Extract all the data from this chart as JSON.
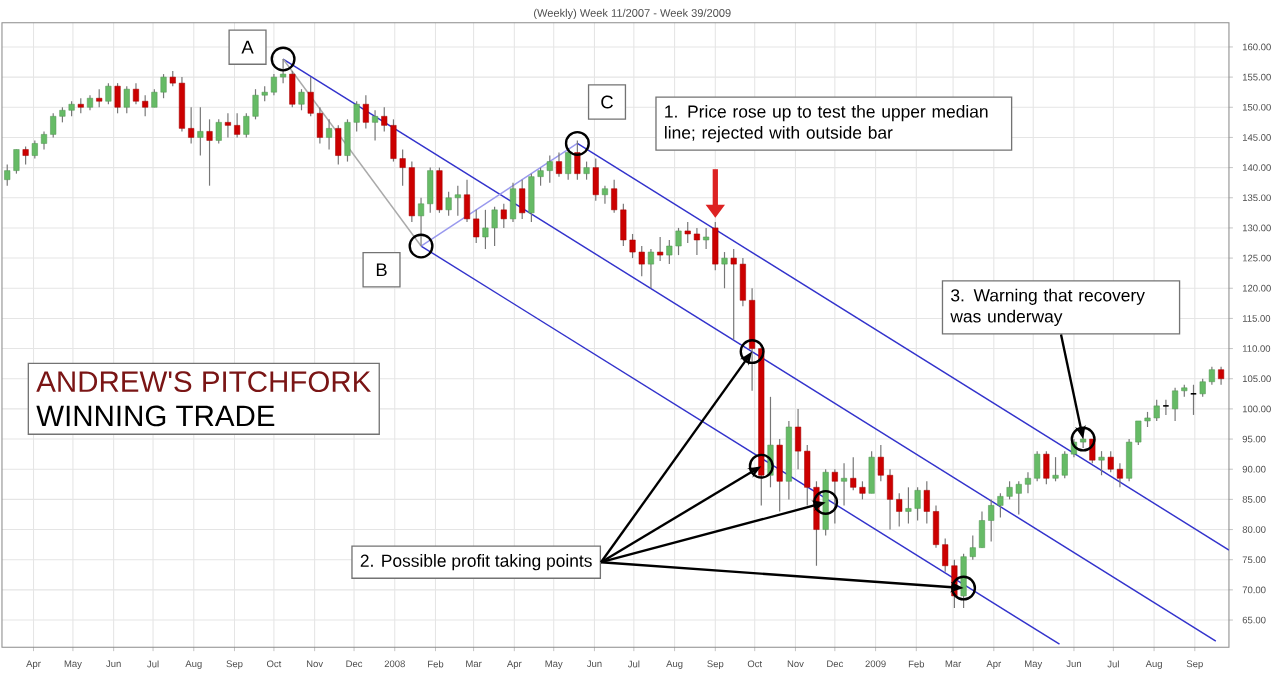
{
  "chart_data": {
    "type": "candlestick",
    "title": "(Weekly) Week 11/2007 - Week 39/2009",
    "x": [
      "2007-03-12",
      "2007-03-19",
      "2007-03-26",
      "2007-04-02",
      "2007-04-09",
      "2007-04-16",
      "2007-04-23",
      "2007-04-30",
      "2007-05-07",
      "2007-05-14",
      "2007-05-21",
      "2007-05-28",
      "2007-06-04",
      "2007-06-11",
      "2007-06-18",
      "2007-06-25",
      "2007-07-02",
      "2007-07-09",
      "2007-07-16",
      "2007-07-23",
      "2007-07-30",
      "2007-08-06",
      "2007-08-13",
      "2007-08-20",
      "2007-08-27",
      "2007-09-03",
      "2007-09-10",
      "2007-09-17",
      "2007-09-24",
      "2007-10-01",
      "2007-10-08",
      "2007-10-15",
      "2007-10-22",
      "2007-10-29",
      "2007-11-05",
      "2007-11-12",
      "2007-11-19",
      "2007-11-26",
      "2007-12-03",
      "2007-12-10",
      "2007-12-17",
      "2007-12-24",
      "2007-12-31",
      "2008-01-07",
      "2008-01-14",
      "2008-01-21",
      "2008-01-28",
      "2008-02-04",
      "2008-02-11",
      "2008-02-18",
      "2008-02-25",
      "2008-03-03",
      "2008-03-10",
      "2008-03-17",
      "2008-03-24",
      "2008-03-31",
      "2008-04-07",
      "2008-04-14",
      "2008-04-21",
      "2008-04-28",
      "2008-05-05",
      "2008-05-12",
      "2008-05-19",
      "2008-05-26",
      "2008-06-02",
      "2008-06-09",
      "2008-06-16",
      "2008-06-23",
      "2008-06-30",
      "2008-07-07",
      "2008-07-14",
      "2008-07-21",
      "2008-07-28",
      "2008-08-04",
      "2008-08-11",
      "2008-08-18",
      "2008-08-25",
      "2008-09-01",
      "2008-09-08",
      "2008-09-15",
      "2008-09-22",
      "2008-09-29",
      "2008-10-06",
      "2008-10-13",
      "2008-10-20",
      "2008-10-27",
      "2008-11-03",
      "2008-11-10",
      "2008-11-17",
      "2008-11-24",
      "2008-12-01",
      "2008-12-08",
      "2008-12-15",
      "2008-12-22",
      "2008-12-29",
      "2009-01-05",
      "2009-01-12",
      "2009-01-19",
      "2009-01-26",
      "2009-02-02",
      "2009-02-09",
      "2009-02-16",
      "2009-02-23",
      "2009-03-02",
      "2009-03-09",
      "2009-03-16",
      "2009-03-23",
      "2009-03-30",
      "2009-04-06",
      "2009-04-13",
      "2009-04-20",
      "2009-04-27",
      "2009-05-04",
      "2009-05-11",
      "2009-05-18",
      "2009-05-25",
      "2009-06-01",
      "2009-06-08",
      "2009-06-15",
      "2009-06-22",
      "2009-06-29",
      "2009-07-06",
      "2009-07-13",
      "2009-07-20",
      "2009-07-27",
      "2009-08-03",
      "2009-08-10",
      "2009-08-17",
      "2009-08-24",
      "2009-08-31",
      "2009-09-07",
      "2009-09-14",
      "2009-09-21"
    ],
    "ohlc": [
      [
        138,
        140.5,
        137,
        139.5
      ],
      [
        139.5,
        143,
        139,
        143
      ],
      [
        143,
        143.5,
        140.5,
        142
      ],
      [
        142,
        144.5,
        141.5,
        144
      ],
      [
        144,
        146,
        143,
        145.5
      ],
      [
        145.5,
        149,
        145,
        148.5
      ],
      [
        148.5,
        150,
        147.5,
        149.5
      ],
      [
        149.5,
        151,
        148.5,
        150.5
      ],
      [
        150.5,
        151.5,
        149,
        150
      ],
      [
        150,
        152,
        149.5,
        151.5
      ],
      [
        151.5,
        153,
        150,
        151
      ],
      [
        151,
        154,
        150.5,
        153.5
      ],
      [
        153.5,
        154,
        149,
        150
      ],
      [
        150,
        153.5,
        149,
        153
      ],
      [
        153,
        154,
        150.5,
        151
      ],
      [
        151,
        152,
        148.5,
        150
      ],
      [
        150,
        153,
        150,
        152.5
      ],
      [
        152.5,
        155.5,
        151.5,
        155
      ],
      [
        155,
        156,
        153.5,
        154
      ],
      [
        154,
        155,
        146,
        146.5
      ],
      [
        146.5,
        150,
        144,
        145
      ],
      [
        145,
        150,
        142,
        146
      ],
      [
        146,
        148,
        137,
        144.5
      ],
      [
        144.5,
        148,
        144,
        147.5
      ],
      [
        147.5,
        149,
        145,
        147
      ],
      [
        147,
        149,
        145,
        145.5
      ],
      [
        145.5,
        149,
        145,
        148.5
      ],
      [
        148.5,
        153,
        148,
        152
      ],
      [
        152,
        153.5,
        151,
        152.5
      ],
      [
        152.5,
        155.5,
        152,
        155
      ],
      [
        155,
        158,
        154,
        155.5
      ],
      [
        155.5,
        156,
        150,
        150.5
      ],
      [
        150.5,
        153,
        149.5,
        152.5
      ],
      [
        152.5,
        155,
        148.5,
        149
      ],
      [
        149,
        150,
        144,
        145
      ],
      [
        145,
        148,
        143,
        146.5
      ],
      [
        146.5,
        147,
        140.5,
        142
      ],
      [
        142,
        148,
        141,
        147.5
      ],
      [
        147.5,
        151,
        146,
        150.5
      ],
      [
        150.5,
        152,
        146.5,
        147.5
      ],
      [
        147.5,
        149.5,
        144.5,
        148.5
      ],
      [
        148.5,
        150,
        146,
        147
      ],
      [
        147,
        148,
        141,
        141.5
      ],
      [
        141.5,
        143,
        137,
        140
      ],
      [
        140,
        141,
        131,
        132
      ],
      [
        132,
        135,
        127,
        134
      ],
      [
        134,
        140,
        132.5,
        139.5
      ],
      [
        139.5,
        140,
        132.5,
        133
      ],
      [
        133,
        136,
        132,
        135
      ],
      [
        135,
        137,
        132,
        135.5
      ],
      [
        135.5,
        138,
        131,
        131.5
      ],
      [
        131.5,
        133,
        127.5,
        128.5
      ],
      [
        128.5,
        133,
        126.5,
        130
      ],
      [
        130,
        133.5,
        127,
        133
      ],
      [
        133,
        134,
        130,
        131.5
      ],
      [
        131.5,
        137.5,
        131,
        136.5
      ],
      [
        136.5,
        138,
        131.5,
        132.5
      ],
      [
        132.5,
        139,
        131,
        138.5
      ],
      [
        138.5,
        140,
        137,
        139.5
      ],
      [
        139.5,
        142,
        137.5,
        141
      ],
      [
        141,
        142.5,
        138.5,
        139
      ],
      [
        139,
        143,
        138,
        142.5
      ],
      [
        142.5,
        144.5,
        138,
        139
      ],
      [
        139,
        141,
        138,
        140
      ],
      [
        140,
        141.5,
        134.5,
        135.5
      ],
      [
        135.5,
        137,
        134,
        136.5
      ],
      [
        136.5,
        138,
        132.5,
        133
      ],
      [
        133,
        134,
        127,
        128
      ],
      [
        128,
        129,
        125,
        126
      ],
      [
        126,
        127,
        122,
        124
      ],
      [
        124,
        126.5,
        120,
        126
      ],
      [
        126,
        128.5,
        124.5,
        125.5
      ],
      [
        125.5,
        128,
        124,
        127
      ],
      [
        127,
        130,
        125.5,
        129.5
      ],
      [
        129.5,
        131,
        127.5,
        129
      ],
      [
        129,
        130,
        125.5,
        128
      ],
      [
        128,
        130,
        126.5,
        128.5
      ],
      [
        130,
        131,
        123,
        124
      ],
      [
        124,
        126,
        120,
        125
      ],
      [
        125,
        126.5,
        111.5,
        124
      ],
      [
        124,
        125,
        117,
        118
      ],
      [
        118,
        120,
        103,
        110
      ],
      [
        110,
        110.5,
        84,
        89
      ],
      [
        89,
        102,
        87,
        94
      ],
      [
        94,
        95,
        83,
        88
      ],
      [
        88,
        98,
        85,
        97
      ],
      [
        97,
        100,
        90,
        93
      ],
      [
        93,
        94,
        84,
        87
      ],
      [
        87,
        88,
        74,
        80
      ],
      [
        80,
        90,
        79,
        89.5
      ],
      [
        89.5,
        90,
        81,
        88
      ],
      [
        88,
        91,
        84,
        88.5
      ],
      [
        88.5,
        92,
        86.5,
        87
      ],
      [
        87,
        88,
        85,
        86
      ],
      [
        86,
        93,
        86,
        92
      ],
      [
        92,
        94,
        88,
        89
      ],
      [
        89,
        90,
        80,
        85
      ],
      [
        85,
        86,
        80.5,
        83
      ],
      [
        83,
        87,
        81,
        83.5
      ],
      [
        83.5,
        87,
        81.5,
        86.5
      ],
      [
        86.5,
        88,
        81,
        83
      ],
      [
        83,
        84,
        77,
        77.5
      ],
      [
        77.5,
        78.5,
        73,
        74
      ],
      [
        74,
        75,
        67,
        69
      ],
      [
        69,
        76,
        67,
        75.5
      ],
      [
        75.5,
        79,
        75,
        77
      ],
      [
        77,
        83,
        77,
        81.5
      ],
      [
        81.5,
        85,
        78,
        84
      ],
      [
        84,
        86,
        82,
        85.5
      ],
      [
        85.5,
        88,
        85,
        87
      ],
      [
        86,
        88,
        82.5,
        87.5
      ],
      [
        87.5,
        89.5,
        86,
        88.5
      ],
      [
        88.5,
        93,
        88,
        92.5
      ],
      [
        92.5,
        93,
        87.5,
        88.5
      ],
      [
        88.5,
        92,
        88,
        89
      ],
      [
        89,
        93,
        88.5,
        92.5
      ],
      [
        92.5,
        95,
        92,
        94.5
      ],
      [
        94.5,
        96,
        93.5,
        95
      ],
      [
        95,
        95,
        91,
        91.5
      ],
      [
        91.5,
        93,
        89,
        92
      ],
      [
        92,
        93,
        89.5,
        90
      ],
      [
        90,
        91,
        87,
        88.5
      ],
      [
        88.5,
        95,
        88,
        94.5
      ],
      [
        94.5,
        98,
        94,
        98
      ],
      [
        98,
        99.5,
        97,
        98.5
      ],
      [
        98.5,
        101.5,
        98,
        100.5
      ],
      [
        100.5,
        101.5,
        99,
        100.5
      ],
      [
        100,
        103.5,
        98,
        103
      ],
      [
        103,
        104,
        102,
        103.5
      ],
      [
        102.5,
        104,
        99,
        102.5
      ],
      [
        102.5,
        105,
        102,
        104.5
      ],
      [
        104.5,
        107,
        104,
        106.5
      ],
      [
        106.5,
        107,
        104,
        105
      ]
    ],
    "series": [
      {
        "type": "line",
        "color": "#3333cc",
        "x": [
          "2007-10-08",
          "2009-09-17"
        ],
        "values": [
          158,
          61.5
        ]
      },
      {
        "type": "line",
        "color": "#3333cc",
        "x": [
          "2008-05-19",
          "2009-09-27"
        ],
        "values": [
          144,
          76.6
        ]
      },
      {
        "type": "line",
        "color": "#3333cc",
        "x": [
          "2008-01-21",
          "2009-05-21"
        ],
        "values": [
          127,
          61
        ]
      },
      {
        "type": "line",
        "color": "#aaaaaa",
        "x": [
          "2007-10-08",
          "2008-01-21"
        ],
        "values": [
          158,
          127
        ]
      },
      {
        "type": "line",
        "color": "#9999ee",
        "x": [
          "2008-01-21",
          "2008-05-19"
        ],
        "values": [
          127,
          144
        ]
      },
      {
        "type": "scatter",
        "color": "#000000",
        "marker": "circle",
        "x": [
          "2007-10-08",
          "2008-01-21",
          "2008-05-19",
          "2008-09-29",
          "2008-10-06",
          "2008-11-24",
          "2009-03-09",
          "2009-06-08"
        ],
        "values": [
          158,
          127,
          144,
          109.5,
          90.5,
          84.5,
          70.3,
          95
        ]
      }
    ],
    "xlim": [
      "2007-03-08",
      "2009-09-27"
    ],
    "ylim": [
      60.5,
      164
    ],
    "xticks": [
      {
        "value": "2007-04-01",
        "label": "Apr"
      },
      {
        "value": "2007-05-01",
        "label": "May"
      },
      {
        "value": "2007-06-01",
        "label": "Jun"
      },
      {
        "value": "2007-07-01",
        "label": "Jul"
      },
      {
        "value": "2007-08-01",
        "label": "Aug"
      },
      {
        "value": "2007-09-01",
        "label": "Sep"
      },
      {
        "value": "2007-10-01",
        "label": "Oct"
      },
      {
        "value": "2007-11-01",
        "label": "Nov"
      },
      {
        "value": "2007-12-01",
        "label": "Dec"
      },
      {
        "value": "2008-01-01",
        "label": "2008"
      },
      {
        "value": "2008-02-01",
        "label": "Feb"
      },
      {
        "value": "2008-03-01",
        "label": "Mar"
      },
      {
        "value": "2008-04-01",
        "label": "Apr"
      },
      {
        "value": "2008-05-01",
        "label": "May"
      },
      {
        "value": "2008-06-01",
        "label": "Jun"
      },
      {
        "value": "2008-07-01",
        "label": "Jul"
      },
      {
        "value": "2008-08-01",
        "label": "Aug"
      },
      {
        "value": "2008-09-01",
        "label": "Sep"
      },
      {
        "value": "2008-10-01",
        "label": "Oct"
      },
      {
        "value": "2008-11-01",
        "label": "Nov"
      },
      {
        "value": "2008-12-01",
        "label": "Dec"
      },
      {
        "value": "2009-01-01",
        "label": "2009"
      },
      {
        "value": "2009-02-01",
        "label": "Feb"
      },
      {
        "value": "2009-03-01",
        "label": "Mar"
      },
      {
        "value": "2009-04-01",
        "label": "Apr"
      },
      {
        "value": "2009-05-01",
        "label": "May"
      },
      {
        "value": "2009-06-01",
        "label": "Jun"
      },
      {
        "value": "2009-07-01",
        "label": "Jul"
      },
      {
        "value": "2009-08-01",
        "label": "Aug"
      },
      {
        "value": "2009-09-01",
        "label": "Sep"
      }
    ],
    "yticks": [
      {
        "value": 65,
        "label": "65.00"
      },
      {
        "value": 70,
        "label": "70.00"
      },
      {
        "value": 75,
        "label": "75.00"
      },
      {
        "value": 80,
        "label": "80.00"
      },
      {
        "value": 85,
        "label": "85.00"
      },
      {
        "value": 90,
        "label": "90.00"
      },
      {
        "value": 95,
        "label": "95.00"
      },
      {
        "value": 100,
        "label": "100.00"
      },
      {
        "value": 105,
        "label": "105.00"
      },
      {
        "value": 110,
        "label": "110.00"
      },
      {
        "value": 115,
        "label": "115.00"
      },
      {
        "value": 120,
        "label": "120.00"
      },
      {
        "value": 125,
        "label": "125.00"
      },
      {
        "value": 130,
        "label": "130.00"
      },
      {
        "value": 135,
        "label": "135.00"
      },
      {
        "value": 140,
        "label": "140.00"
      },
      {
        "value": 145,
        "label": "145.00"
      },
      {
        "value": 150,
        "label": "150.00"
      },
      {
        "value": 155,
        "label": "155.00"
      },
      {
        "value": 160,
        "label": "160.00"
      }
    ],
    "grid": true,
    "annotations": [
      {
        "text": "A",
        "x": "2007-10-08",
        "y": 158
      },
      {
        "text": "B",
        "x": "2008-01-21",
        "y": 127
      },
      {
        "text": "C",
        "x": "2008-05-19",
        "y": 144
      },
      "1. Price rose up to test the upper median line; rejected with outside bar",
      {
        "text": "2. Possible profit taking points",
        "x": "2008-09-29",
        "y": 109.5
      },
      {
        "text": "3. Warning that recovery was underway",
        "x": "2009-06-08",
        "y": 95
      },
      "ANDREW'S PITCHFORK",
      "WINNING TRADE"
    ]
  }
}
